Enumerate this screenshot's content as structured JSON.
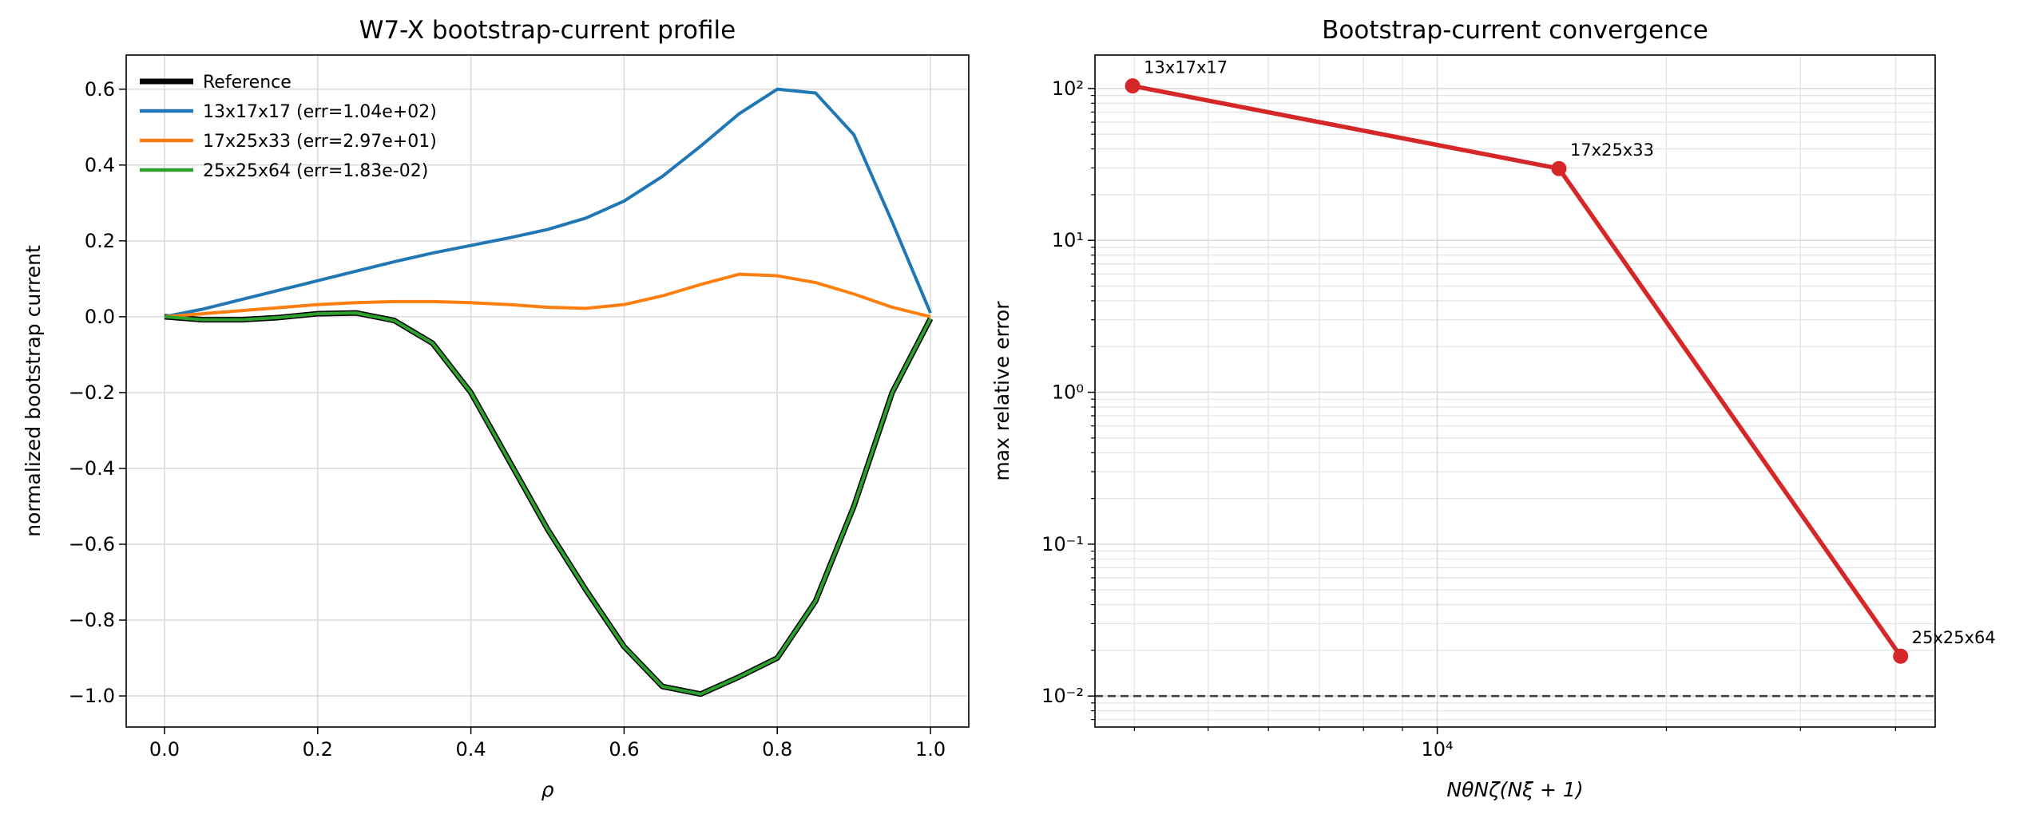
{
  "chart_data": [
    {
      "type": "line",
      "title": "W7-X bootstrap-current profile",
      "xlabel": "ρ",
      "ylabel": "normalized bootstrap current",
      "x": [
        0,
        0.05,
        0.1,
        0.15,
        0.2,
        0.25,
        0.3,
        0.35,
        0.4,
        0.45,
        0.5,
        0.55,
        0.6,
        0.65,
        0.7,
        0.75,
        0.8,
        0.85,
        0.9,
        0.95,
        1.0
      ],
      "series": [
        {
          "name": "Reference",
          "color": "#000000",
          "values": [
            0,
            -0.008,
            -0.008,
            -0.002,
            0.008,
            0.01,
            -0.01,
            -0.07,
            -0.2,
            -0.38,
            -0.56,
            -0.72,
            -0.87,
            -0.975,
            -0.995,
            -0.95,
            -0.9,
            -0.75,
            -0.5,
            -0.2,
            -0.005
          ]
        },
        {
          "name": "13x17x17  (err=1.04e+02)",
          "color": "#1f77b4",
          "values": [
            0,
            0.02,
            0.045,
            0.07,
            0.095,
            0.12,
            0.145,
            0.168,
            0.188,
            0.208,
            0.23,
            0.26,
            0.305,
            0.37,
            0.45,
            0.535,
            0.6,
            0.59,
            0.48,
            0.25,
            0.01
          ]
        },
        {
          "name": "17x25x33  (err=2.97e+01)",
          "color": "#ff7f0e",
          "values": [
            0,
            0.008,
            0.016,
            0.024,
            0.032,
            0.037,
            0.04,
            0.04,
            0.037,
            0.032,
            0.025,
            0.022,
            0.032,
            0.055,
            0.085,
            0.112,
            0.108,
            0.09,
            0.06,
            0.025,
            0
          ]
        },
        {
          "name": "25x25x64  (err=1.83e-02)",
          "color": "#2ca02c",
          "values": [
            0,
            -0.008,
            -0.008,
            -0.002,
            0.008,
            0.01,
            -0.01,
            -0.07,
            -0.2,
            -0.38,
            -0.56,
            -0.72,
            -0.87,
            -0.975,
            -0.995,
            -0.95,
            -0.9,
            -0.75,
            -0.5,
            -0.2,
            -0.005
          ]
        }
      ],
      "xlim": [
        -0.05,
        1.05
      ],
      "ylim": [
        -1.082,
        0.69
      ],
      "xticks": [
        {
          "value": 0,
          "label": "0.0"
        },
        {
          "value": 0.2,
          "label": "0.2"
        },
        {
          "value": 0.4,
          "label": "0.4"
        },
        {
          "value": 0.6,
          "label": "0.6"
        },
        {
          "value": 0.8,
          "label": "0.8"
        },
        {
          "value": 1.0,
          "label": "1.0"
        }
      ],
      "yticks": [
        {
          "value": -1.0,
          "label": "−1.0"
        },
        {
          "value": -0.8,
          "label": "−0.8"
        },
        {
          "value": -0.6,
          "label": "−0.6"
        },
        {
          "value": -0.4,
          "label": "−0.4"
        },
        {
          "value": -0.2,
          "label": "−0.2"
        },
        {
          "value": 0,
          "label": "0.0"
        },
        {
          "value": 0.2,
          "label": "0.2"
        },
        {
          "value": 0.4,
          "label": "0.4"
        },
        {
          "value": 0.6,
          "label": "0.6"
        }
      ],
      "grid": true,
      "legend": "upper-left"
    },
    {
      "type": "line",
      "title": "Bootstrap-current convergence",
      "xlabel": "NθNζ(Nξ + 1)",
      "ylabel": "max relative error",
      "x": [
        3978,
        14450,
        40625
      ],
      "series": [
        {
          "color": "#d62728",
          "values": [
            104,
            29.7,
            0.0183
          ]
        }
      ],
      "point_labels": [
        "13x17x17",
        "17x25x33",
        "25x25x64"
      ],
      "markers": true,
      "xscale": "log",
      "yscale": "log",
      "xlim": [
        3550,
        45100
      ],
      "ylim": [
        0.00625,
        166
      ],
      "xticks": [
        {
          "value": 10000,
          "label": "10⁴"
        }
      ],
      "yticks": [
        {
          "value": 0.01,
          "label": "10⁻²"
        },
        {
          "value": 0.1,
          "label": "10⁻¹"
        },
        {
          "value": 1,
          "label": "10⁰"
        },
        {
          "value": 10,
          "label": "10¹"
        },
        {
          "value": 100,
          "label": "10²"
        }
      ],
      "hline": 0.01,
      "grid": true,
      "minor_grid": true
    }
  ]
}
